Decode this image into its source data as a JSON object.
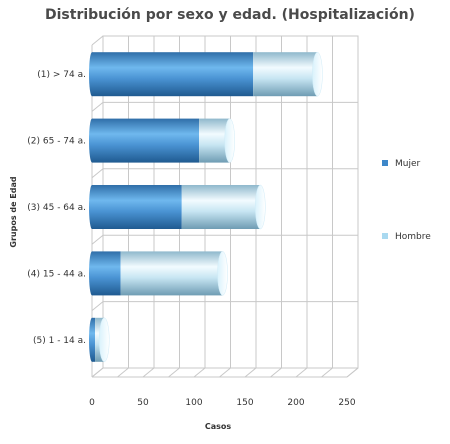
{
  "chart_data": {
    "type": "bar",
    "orientation": "horizontal",
    "stacked": true,
    "style": "3d-cylinder",
    "title": "Distribución por sexo y edad. (Hospitalización)",
    "xlabel": "Casos",
    "ylabel": "Grupos de Edad",
    "categories": [
      "(1) > 74 a.",
      "(2) 65 - 74 a.",
      "(3) 45 - 64 a.",
      "(4) 15 - 44 a.",
      "(5) 1 - 14 a."
    ],
    "series": [
      {
        "name": "Mujer",
        "color": "#3d87c9",
        "values": [
          158,
          105,
          88,
          28,
          3
        ]
      },
      {
        "name": "Hombre",
        "color": "#a9d9f0",
        "values": [
          63,
          30,
          77,
          100,
          9
        ]
      }
    ],
    "xlim": [
      0,
      250
    ],
    "xticks": [
      "0",
      "50",
      "100",
      "150",
      "200",
      "250"
    ],
    "grid": true,
    "legend_position": "right"
  }
}
